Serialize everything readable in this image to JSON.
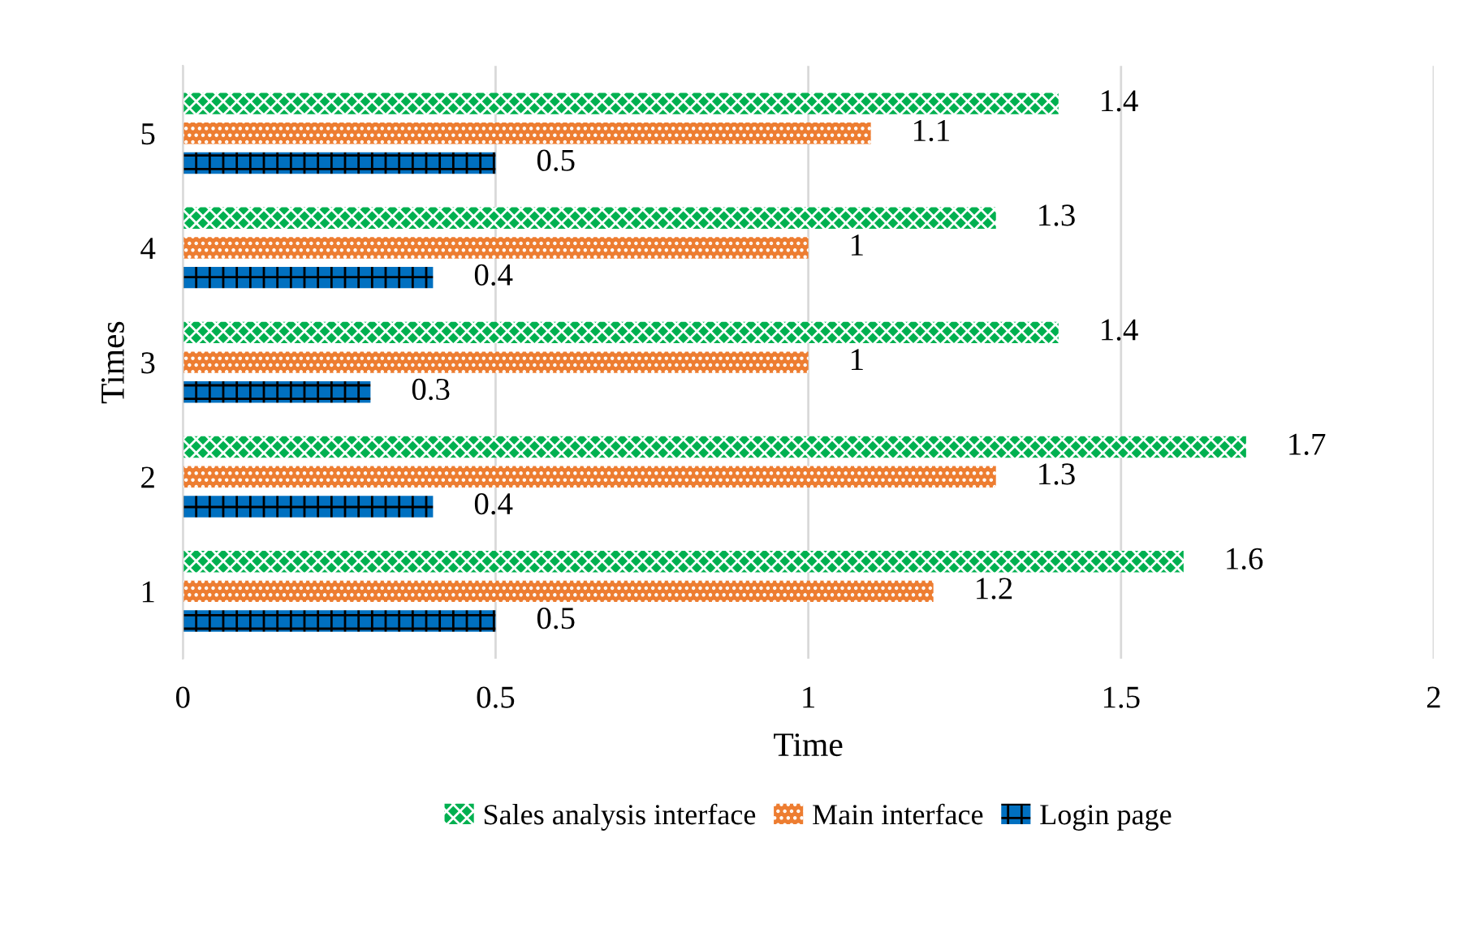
{
  "chart_data": {
    "type": "bar",
    "orientation": "horizontal",
    "xlabel": "Time",
    "ylabel": "Times",
    "categories": [
      "5",
      "4",
      "3",
      "2",
      "1"
    ],
    "series": [
      {
        "name": "Sales analysis interface",
        "color": "#00b050",
        "values": [
          1.4,
          1.3,
          1.4,
          1.7,
          1.6
        ]
      },
      {
        "name": "Main interface",
        "color": "#ed7d31",
        "values": [
          1.1,
          1,
          1,
          1.3,
          1.2
        ]
      },
      {
        "name": "Login page",
        "color": "#0070c0",
        "values": [
          0.5,
          0.4,
          0.3,
          0.4,
          0.5
        ]
      }
    ],
    "xlim": [
      0,
      2
    ],
    "xticks": [
      0,
      0.5,
      1,
      1.5,
      2
    ],
    "grid": "x",
    "legend": "bottom",
    "data_labels": true
  }
}
